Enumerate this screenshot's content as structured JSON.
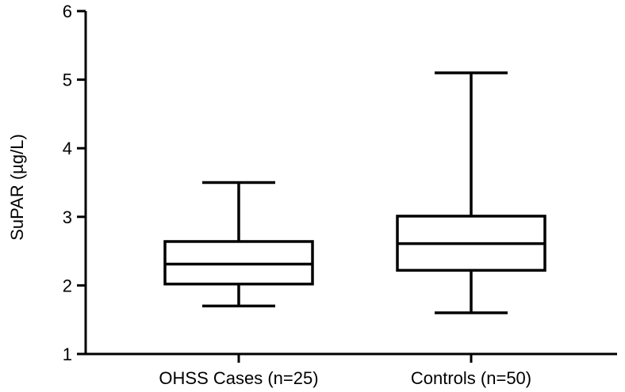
{
  "chart_data": {
    "type": "box",
    "title": "",
    "xlabel": "",
    "ylabel": "SuPAR (µg/L)",
    "ylim": [
      1,
      6
    ],
    "yticks": [
      "1",
      "2",
      "3",
      "4",
      "5",
      "6"
    ],
    "grid": false,
    "legend": "none",
    "categories": [
      "OHSS Cases (n=25)",
      "Controls (n=50)"
    ],
    "series": [
      {
        "min": 1.7,
        "q1": 2.02,
        "median": 2.31,
        "q3": 2.64,
        "max": 3.5
      },
      {
        "min": 1.6,
        "q1": 2.22,
        "median": 2.61,
        "q3": 3.01,
        "max": 5.1
      }
    ],
    "colors": {
      "stroke": "#000000",
      "background": "#ffffff"
    }
  }
}
